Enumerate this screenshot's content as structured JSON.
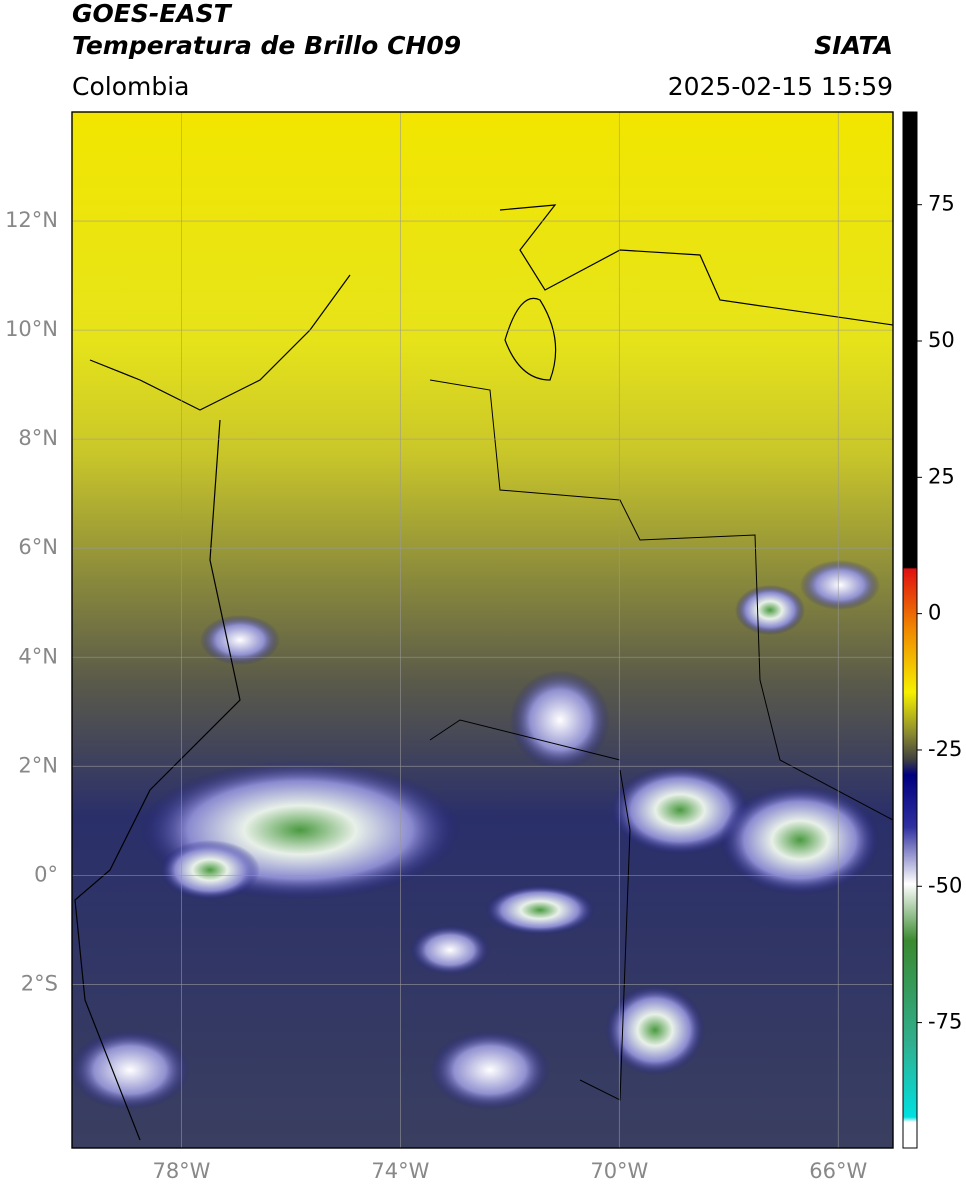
{
  "header": {
    "satellite": "GOES-EAST",
    "product": "Temperatura de Brillo CH09",
    "source": "SIATA",
    "region": "Colombia",
    "timestamp": "2025-02-15 15:59"
  },
  "map": {
    "xlim": [
      -80,
      -65
    ],
    "ylim": [
      -5,
      14
    ],
    "grid": true,
    "xticks": [
      {
        "value": -78,
        "label": "78°W"
      },
      {
        "value": -74,
        "label": "74°W"
      },
      {
        "value": -70,
        "label": "70°W"
      },
      {
        "value": -66,
        "label": "66°W"
      }
    ],
    "yticks": [
      {
        "value": 12,
        "label": "12°N"
      },
      {
        "value": 10,
        "label": "10°N"
      },
      {
        "value": 8,
        "label": "8°N"
      },
      {
        "value": 6,
        "label": "6°N"
      },
      {
        "value": 4,
        "label": "4°N"
      },
      {
        "value": 2,
        "label": "2°N"
      },
      {
        "value": 0,
        "label": "0°"
      },
      {
        "value": -2,
        "label": "2°S"
      }
    ]
  },
  "colorbar": {
    "clim": [
      -98,
      92
    ],
    "ticks": [
      75,
      50,
      25,
      0,
      -25,
      -50,
      -75
    ]
  }
}
